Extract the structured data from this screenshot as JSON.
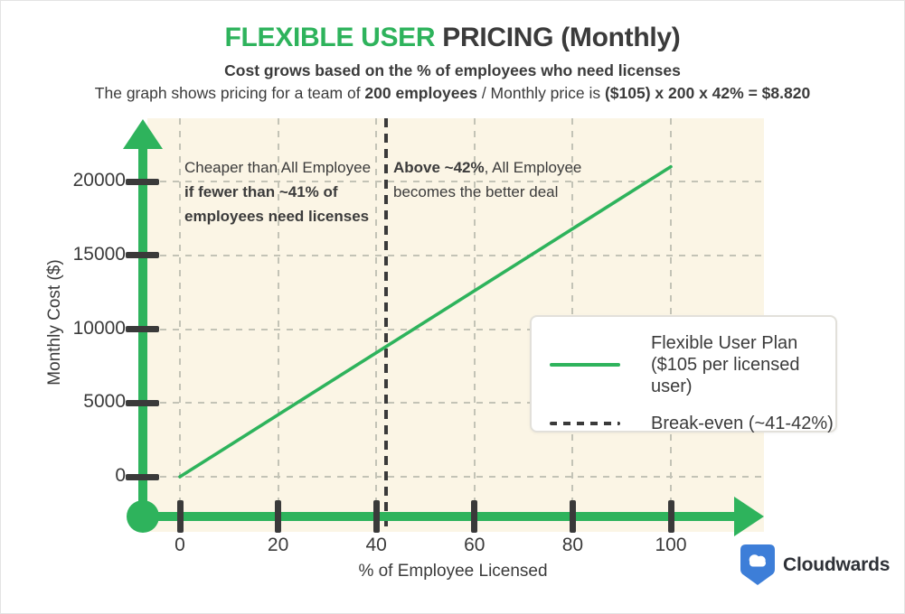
{
  "header": {
    "title_highlight": "FLEXIBLE USER",
    "title_rest": " PRICING (Monthly)",
    "subtitle": "Cost grows based on the % of employees who need licenses",
    "description_parts": [
      {
        "text": "The graph shows pricing for a team of ",
        "bold": false
      },
      {
        "text": "200 employees",
        "bold": true
      },
      {
        "text": " / Monthly price is ",
        "bold": false
      },
      {
        "text": "($105) x 200 x 42% = $8.820",
        "bold": true
      }
    ]
  },
  "chart_data": {
    "type": "line",
    "xlabel": "% of Employee Licensed",
    "ylabel": "Monthly Cost ($)",
    "xlim": [
      0,
      100
    ],
    "ylim": [
      0,
      21000
    ],
    "x_ticks": [
      0,
      20,
      40,
      60,
      80,
      100
    ],
    "y_ticks": [
      0,
      5000,
      10000,
      15000,
      20000
    ],
    "grid": true,
    "legend_position": "middle-right",
    "series": [
      {
        "name": "Flexible User Plan ($105 per licensed user)",
        "style": "solid",
        "color": "#2eb35c",
        "x": [
          0,
          100
        ],
        "y": [
          0,
          21000
        ]
      }
    ],
    "breakeven": {
      "x": 42,
      "style": "dashed",
      "color": "#3a3a3a"
    },
    "annotations": {
      "left": {
        "lines": [
          [
            {
              "text": "Cheaper than All Employee",
              "bold": false
            }
          ],
          [
            {
              "text": "if fewer than ~41% of",
              "bold": true
            }
          ],
          [
            {
              "text": "employees need licenses",
              "bold": true
            }
          ]
        ]
      },
      "right": {
        "lines": [
          [
            {
              "text": "Above ~42%",
              "bold": true
            },
            {
              "text": ", All Employee",
              "bold": false
            }
          ],
          [
            {
              "text": "becomes the better deal",
              "bold": false
            }
          ]
        ]
      }
    },
    "legend": {
      "items": [
        {
          "swatch": "solid-line",
          "color": "#2eb35c",
          "label_lines": [
            "Flexible User Plan",
            "($105 per licensed user)"
          ]
        },
        {
          "swatch": "dashed-line",
          "color": "#3a3a3a",
          "label_lines": [
            "Break-even (~41-42%)"
          ]
        }
      ]
    }
  },
  "branding": {
    "name": "Cloudwards",
    "logo": "cloudwards-shield-cloud-icon"
  },
  "colors": {
    "accent_green": "#2eb35c",
    "text_dark": "#3a3a3a",
    "plot_bg": "#fbf5e5",
    "gridline": "#c3c3b6",
    "logo_blue": "#3d7ed8"
  }
}
